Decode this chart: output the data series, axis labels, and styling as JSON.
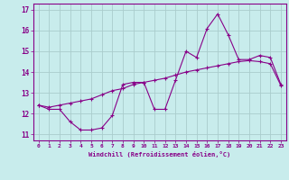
{
  "xlabel": "Windchill (Refroidissement éolien,°C)",
  "bg_color": "#c8ecec",
  "line_color": "#880088",
  "grid_color": "#aacccc",
  "xlim": [
    -0.5,
    23.5
  ],
  "ylim": [
    10.7,
    17.3
  ],
  "xticks": [
    0,
    1,
    2,
    3,
    4,
    5,
    6,
    7,
    8,
    9,
    10,
    11,
    12,
    13,
    14,
    15,
    16,
    17,
    18,
    19,
    20,
    21,
    22,
    23
  ],
  "yticks": [
    11,
    12,
    13,
    14,
    15,
    16,
    17
  ],
  "series1_x": [
    0,
    1,
    2,
    3,
    4,
    5,
    6,
    7,
    8,
    9,
    10,
    11,
    12,
    13,
    14,
    15,
    16,
    17,
    18,
    19,
    20,
    21,
    22,
    23
  ],
  "series1_y": [
    12.4,
    12.2,
    12.2,
    11.6,
    11.2,
    11.2,
    11.3,
    11.9,
    13.4,
    13.5,
    13.5,
    12.2,
    12.2,
    13.6,
    15.0,
    14.7,
    16.1,
    16.8,
    15.8,
    14.6,
    14.6,
    14.8,
    14.7,
    13.4
  ],
  "series2_x": [
    0,
    1,
    2,
    3,
    4,
    5,
    6,
    7,
    8,
    9,
    10,
    11,
    12,
    13,
    14,
    15,
    16,
    17,
    18,
    19,
    20,
    21,
    22,
    23
  ],
  "series2_y": [
    12.4,
    12.3,
    12.4,
    12.5,
    12.6,
    12.7,
    12.9,
    13.1,
    13.2,
    13.4,
    13.5,
    13.6,
    13.7,
    13.85,
    14.0,
    14.1,
    14.2,
    14.3,
    14.4,
    14.5,
    14.55,
    14.5,
    14.4,
    13.35
  ]
}
